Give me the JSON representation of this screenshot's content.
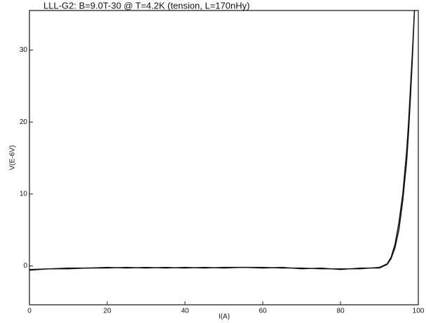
{
  "chart_data": {
    "type": "line",
    "title": "LLL-G2: B=9.0T-30 @ T=4.2K (tension, L=170nHy)",
    "y_label": "V(E-6V)",
    "x_label": "I(A)",
    "x": [
      0,
      5,
      10,
      15,
      20,
      25,
      30,
      35,
      40,
      45,
      50,
      55,
      60,
      65,
      70,
      75,
      80,
      85,
      90,
      92,
      93,
      94,
      95,
      96,
      97,
      97.5,
      98,
      98.5,
      99
    ],
    "series": [
      {
        "color": "#111111",
        "values": [
          -0.6,
          -0.4,
          -0.3,
          -0.3,
          -0.2,
          -0.3,
          -0.2,
          -0.3,
          -0.2,
          -0.3,
          -0.2,
          -0.2,
          -0.2,
          -0.3,
          -0.3,
          -0.4,
          -0.4,
          -0.4,
          -0.2,
          0.3,
          1.2,
          3,
          6,
          10,
          16,
          20,
          25,
          30,
          35.5
        ]
      },
      {
        "color": "#111111",
        "values": [
          -0.5,
          -0.4,
          -0.4,
          -0.3,
          -0.3,
          -0.2,
          -0.3,
          -0.2,
          -0.3,
          -0.2,
          -0.3,
          -0.2,
          -0.3,
          -0.2,
          -0.4,
          -0.3,
          -0.5,
          -0.3,
          -0.3,
          0.2,
          1,
          2.5,
          5,
          9,
          14.5,
          18.5,
          23.5,
          29,
          35.5
        ]
      }
    ],
    "xlim": [
      0,
      100
    ],
    "ylim": [
      -5.4,
      35.5
    ],
    "xticks": [
      0,
      20,
      40,
      60,
      80,
      100
    ],
    "yticks": [
      0,
      10,
      20,
      30
    ]
  }
}
